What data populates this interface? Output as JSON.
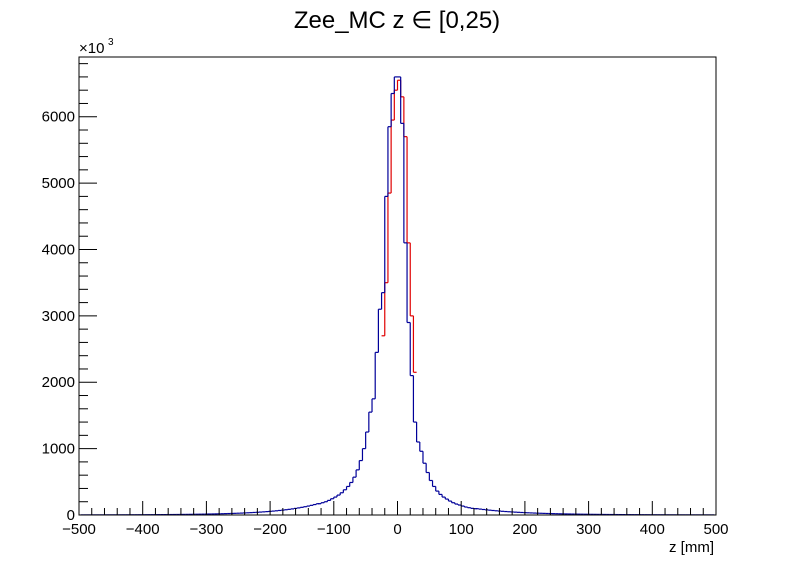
{
  "chart_data": {
    "type": "histogram",
    "title": "Zee_MC z  ∈ [0,25)",
    "xlabel": "z [mm]",
    "ylabel": "",
    "y_multiplier_label": "×10",
    "y_multiplier_exponent": "3",
    "xlim": [
      -500,
      500
    ],
    "ylim": [
      0,
      6900
    ],
    "x_ticks": [
      -500,
      -400,
      -300,
      -200,
      -100,
      0,
      100,
      200,
      300,
      400,
      500
    ],
    "x_tick_labels": [
      "−500",
      "−400",
      "−300",
      "−200",
      "−100",
      "0",
      "100",
      "200",
      "300",
      "400",
      "500"
    ],
    "y_ticks": [
      0,
      1000,
      2000,
      3000,
      4000,
      5000,
      6000
    ],
    "y_tick_labels": [
      "0",
      "1000",
      "2000",
      "3000",
      "4000",
      "5000",
      "6000"
    ],
    "grid": false,
    "bin_width": 5,
    "bin_start": -500,
    "series": [
      {
        "color": "#e00000",
        "centers": [
          -22.5,
          -17.5,
          -12.5,
          -7.5,
          -2.5,
          2.5,
          7.5,
          12.5,
          17.5,
          22.5,
          27.5
        ],
        "values": [
          2700,
          3500,
          4850,
          5950,
          6400,
          6550,
          6300,
          5700,
          4100,
          3000,
          2150
        ]
      },
      {
        "color": "#000099",
        "centers": [
          -122.5,
          -117.5,
          -112.5,
          -107.5,
          -102.5,
          -97.5,
          -92.5,
          -87.5,
          -82.5,
          -77.5,
          -72.5,
          -67.5,
          -62.5,
          -57.5,
          -52.5,
          -47.5,
          -42.5,
          -37.5,
          -32.5,
          -27.5,
          -22.5,
          -17.5,
          -12.5,
          -7.5,
          -2.5,
          2.5,
          7.5,
          12.5,
          17.5,
          22.5,
          27.5,
          32.5,
          37.5,
          42.5,
          47.5,
          52.5,
          57.5,
          62.5,
          67.5,
          72.5,
          77.5,
          82.5,
          87.5,
          92.5,
          97.5,
          102.5,
          107.5,
          112.5,
          117.5,
          122.5
        ],
        "values": [
          170,
          185,
          200,
          220,
          245,
          270,
          300,
          335,
          380,
          430,
          490,
          570,
          680,
          820,
          1000,
          1250,
          1550,
          1750,
          2450,
          3100,
          3350,
          4800,
          5850,
          6350,
          6600,
          6600,
          5900,
          4100,
          2900,
          2100,
          1400,
          1100,
          960,
          780,
          640,
          520,
          430,
          360,
          310,
          270,
          240,
          210,
          185,
          165,
          150,
          135,
          120,
          110,
          100,
          95
        ],
        "tail_left": {
          "x_from": -495,
          "x_to": -125,
          "value_at_center": 170,
          "value_at_edge": 2
        },
        "tail_right": {
          "x_from": 125,
          "x_to": 495,
          "value_at_center": 95,
          "value_at_edge": 2
        }
      }
    ]
  }
}
